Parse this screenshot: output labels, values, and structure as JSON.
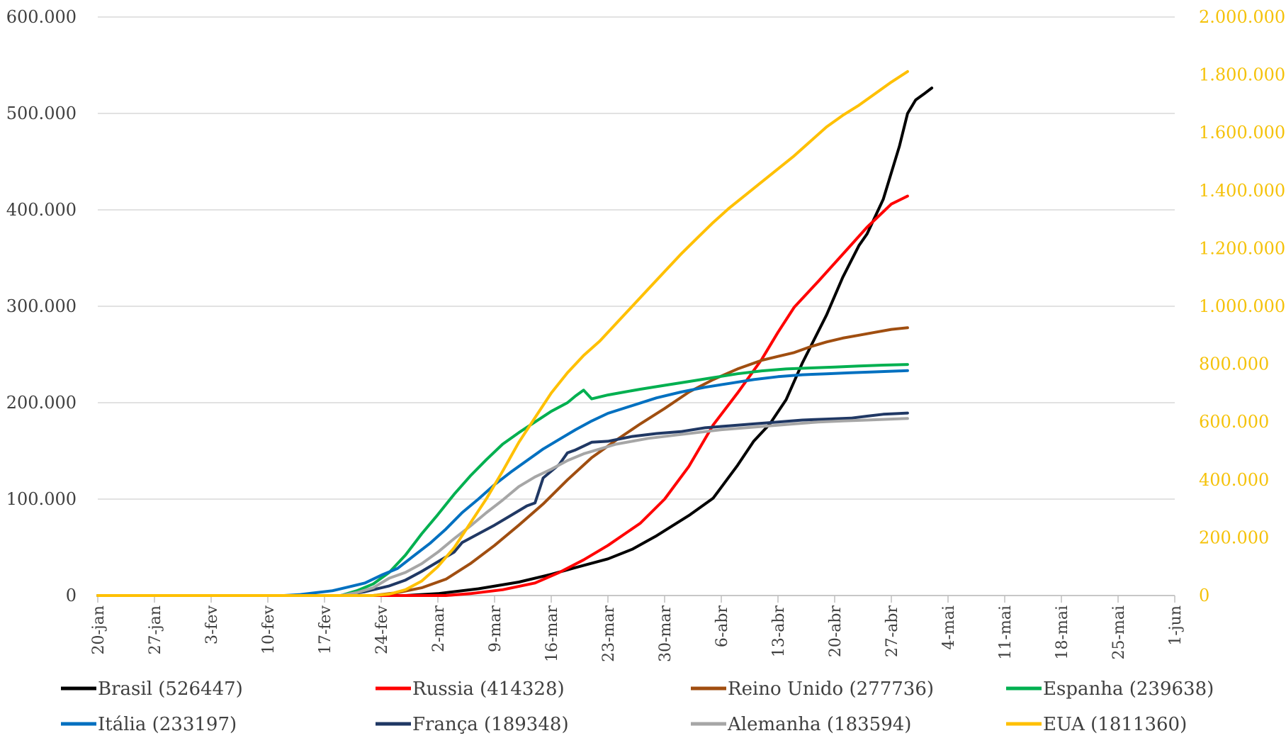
{
  "chart_data": {
    "type": "line",
    "title": "",
    "x_categories": [
      "20-jan",
      "27-jan",
      "3-fev",
      "10-fev",
      "17-fev",
      "24-fev",
      "2-mar",
      "9-mar",
      "16-mar",
      "23-mar",
      "30-mar",
      "6-abr",
      "13-abr",
      "20-abr",
      "27-abr",
      "4-mai",
      "11-mai",
      "18-mai",
      "25-mai",
      "1-jun"
    ],
    "y_left": {
      "ylim": [
        0,
        600000
      ],
      "ticks": [
        0,
        100000,
        200000,
        300000,
        400000,
        500000,
        600000
      ],
      "tick_labels": [
        "0",
        "100.000",
        "200.000",
        "300.000",
        "400.000",
        "500.000",
        "600.000"
      ]
    },
    "y_right": {
      "ylim": [
        0,
        2000000
      ],
      "ticks": [
        0,
        200000,
        400000,
        600000,
        800000,
        1000000,
        1200000,
        1400000,
        1600000,
        1800000,
        2000000
      ],
      "tick_labels": [
        "0",
        "200.000",
        "400.000",
        "600.000",
        "800.000",
        "1.000.000",
        "1.200.000",
        "1.400.000",
        "1.600.000",
        "1.800.000",
        "2.000.000"
      ],
      "color": "#f5c20a"
    },
    "grid": true,
    "legend": "bottom",
    "series": [
      {
        "name": "Brasil (526447)",
        "color": "#000000",
        "axis": "left",
        "points": [
          [
            0,
            0
          ],
          [
            38,
            0
          ],
          [
            42,
            2
          ],
          [
            47,
            7
          ],
          [
            52,
            14
          ],
          [
            56,
            22
          ],
          [
            59,
            29
          ],
          [
            63,
            38
          ],
          [
            66,
            48
          ],
          [
            69,
            62
          ],
          [
            73,
            83
          ],
          [
            76,
            101
          ],
          [
            79,
            135
          ],
          [
            81,
            160
          ],
          [
            83,
            178
          ],
          [
            85,
            203
          ],
          [
            87,
            241
          ],
          [
            90,
            291
          ],
          [
            92,
            330
          ],
          [
            94,
            363
          ],
          [
            95,
            375
          ],
          [
            97,
            411
          ],
          [
            99,
            466
          ],
          [
            100,
            500
          ],
          [
            101,
            514
          ],
          [
            102,
            520
          ],
          [
            103,
            526.4
          ]
        ]
      },
      {
        "name": "Russia (414328)",
        "color": "#ff0000",
        "axis": "left",
        "points": [
          [
            0,
            0
          ],
          [
            43,
            0
          ],
          [
            46,
            2
          ],
          [
            50,
            6
          ],
          [
            54,
            13
          ],
          [
            57,
            24
          ],
          [
            60,
            37
          ],
          [
            63,
            52
          ],
          [
            67,
            75
          ],
          [
            70,
            100
          ],
          [
            73,
            134
          ],
          [
            76,
            177
          ],
          [
            79,
            210
          ],
          [
            82,
            245
          ],
          [
            84,
            273
          ],
          [
            86,
            299
          ],
          [
            89,
            326
          ],
          [
            92,
            354
          ],
          [
            95,
            382
          ],
          [
            98,
            406
          ],
          [
            100,
            414.3
          ]
        ]
      },
      {
        "name": "Reino Unido (277736)",
        "color": "#a04e10",
        "axis": "left",
        "points": [
          [
            0,
            0
          ],
          [
            34,
            0
          ],
          [
            37,
            3
          ],
          [
            40,
            8
          ],
          [
            43,
            17
          ],
          [
            46,
            33
          ],
          [
            49,
            52
          ],
          [
            52,
            73
          ],
          [
            55,
            95
          ],
          [
            58,
            120
          ],
          [
            61,
            143
          ],
          [
            64,
            161
          ],
          [
            67,
            178
          ],
          [
            70,
            194
          ],
          [
            73,
            211
          ],
          [
            76,
            224
          ],
          [
            79,
            235
          ],
          [
            82,
            244
          ],
          [
            84,
            248
          ],
          [
            86,
            252
          ],
          [
            88,
            258
          ],
          [
            90,
            263
          ],
          [
            92,
            267
          ],
          [
            94,
            270
          ],
          [
            96,
            273
          ],
          [
            98,
            276
          ],
          [
            100,
            277.7
          ]
        ]
      },
      {
        "name": "Espanha (239638)",
        "color": "#00b050",
        "axis": "left",
        "points": [
          [
            0,
            0
          ],
          [
            30,
            0
          ],
          [
            32,
            5
          ],
          [
            34,
            12
          ],
          [
            36,
            24
          ],
          [
            38,
            42
          ],
          [
            40,
            64
          ],
          [
            42,
            84
          ],
          [
            44,
            105
          ],
          [
            46,
            124
          ],
          [
            48,
            141
          ],
          [
            50,
            157
          ],
          [
            52,
            169
          ],
          [
            54,
            180
          ],
          [
            56,
            191
          ],
          [
            58,
            200
          ],
          [
            59,
            207
          ],
          [
            60,
            213
          ],
          [
            61,
            204
          ],
          [
            63,
            208
          ],
          [
            65,
            211
          ],
          [
            67,
            214
          ],
          [
            70,
            218
          ],
          [
            73,
            222
          ],
          [
            76,
            226
          ],
          [
            79,
            230
          ],
          [
            82,
            233
          ],
          [
            85,
            235
          ],
          [
            88,
            236
          ],
          [
            91,
            237
          ],
          [
            94,
            238
          ],
          [
            97,
            239
          ],
          [
            100,
            239.6
          ]
        ]
      },
      {
        "name": "Itália (233197)",
        "color": "#0070c0",
        "axis": "left",
        "points": [
          [
            0,
            0
          ],
          [
            23,
            0
          ],
          [
            25,
            1
          ],
          [
            27,
            3
          ],
          [
            29,
            5
          ],
          [
            31,
            9
          ],
          [
            33,
            13
          ],
          [
            35,
            21
          ],
          [
            37,
            28
          ],
          [
            39,
            41
          ],
          [
            41,
            54
          ],
          [
            43,
            69
          ],
          [
            45,
            86
          ],
          [
            47,
            100
          ],
          [
            49,
            115
          ],
          [
            51,
            128
          ],
          [
            53,
            140
          ],
          [
            55,
            152
          ],
          [
            57,
            162
          ],
          [
            59,
            172
          ],
          [
            61,
            181
          ],
          [
            63,
            189
          ],
          [
            66,
            197
          ],
          [
            69,
            205
          ],
          [
            72,
            211
          ],
          [
            75,
            216
          ],
          [
            78,
            220
          ],
          [
            81,
            224
          ],
          [
            84,
            227
          ],
          [
            87,
            229
          ],
          [
            90,
            230
          ],
          [
            93,
            231
          ],
          [
            96,
            232
          ],
          [
            100,
            233.2
          ]
        ]
      },
      {
        "name": "França (189348)",
        "color": "#203864",
        "axis": "left",
        "points": [
          [
            0,
            0
          ],
          [
            30,
            0
          ],
          [
            33,
            4
          ],
          [
            36,
            10
          ],
          [
            38,
            16
          ],
          [
            40,
            25
          ],
          [
            42,
            35
          ],
          [
            44,
            45
          ],
          [
            45,
            55
          ],
          [
            47,
            64
          ],
          [
            49,
            73
          ],
          [
            51,
            83
          ],
          [
            53,
            93
          ],
          [
            54,
            96
          ],
          [
            55,
            122
          ],
          [
            57,
            136
          ],
          [
            58,
            148
          ],
          [
            59,
            151
          ],
          [
            61,
            159
          ],
          [
            63,
            160
          ],
          [
            66,
            165
          ],
          [
            69,
            168
          ],
          [
            72,
            170
          ],
          [
            75,
            174
          ],
          [
            78,
            176
          ],
          [
            81,
            178
          ],
          [
            84,
            180
          ],
          [
            87,
            182
          ],
          [
            90,
            183
          ],
          [
            93,
            184
          ],
          [
            95,
            186
          ],
          [
            97,
            188
          ],
          [
            100,
            189.3
          ]
        ]
      },
      {
        "name": "Alemanha (183594)",
        "color": "#a6a6a6",
        "axis": "left",
        "points": [
          [
            0,
            0
          ],
          [
            30,
            0
          ],
          [
            32,
            3
          ],
          [
            34,
            8
          ],
          [
            36,
            18
          ],
          [
            38,
            24
          ],
          [
            40,
            33
          ],
          [
            42,
            45
          ],
          [
            44,
            59
          ],
          [
            46,
            72
          ],
          [
            48,
            86
          ],
          [
            50,
            99
          ],
          [
            52,
            113
          ],
          [
            54,
            123
          ],
          [
            56,
            131
          ],
          [
            58,
            140
          ],
          [
            60,
            147
          ],
          [
            62,
            152
          ],
          [
            64,
            157
          ],
          [
            66,
            160
          ],
          [
            68,
            163
          ],
          [
            71,
            166
          ],
          [
            74,
            169
          ],
          [
            77,
            172
          ],
          [
            80,
            174
          ],
          [
            83,
            176
          ],
          [
            86,
            178
          ],
          [
            89,
            180
          ],
          [
            92,
            181
          ],
          [
            95,
            182
          ],
          [
            98,
            183
          ],
          [
            100,
            183.6
          ]
        ]
      },
      {
        "name": "EUA (1811360)",
        "color": "#ffc000",
        "axis": "right",
        "points": [
          [
            0,
            0
          ],
          [
            34,
            0
          ],
          [
            36,
            5
          ],
          [
            38,
            20
          ],
          [
            40,
            50
          ],
          [
            42,
            100
          ],
          [
            44,
            165
          ],
          [
            46,
            250
          ],
          [
            48,
            335
          ],
          [
            50,
            430
          ],
          [
            52,
            530
          ],
          [
            54,
            615
          ],
          [
            56,
            700
          ],
          [
            58,
            770
          ],
          [
            60,
            830
          ],
          [
            62,
            880
          ],
          [
            64,
            940
          ],
          [
            66,
            1000
          ],
          [
            68,
            1060
          ],
          [
            70,
            1120
          ],
          [
            72,
            1180
          ],
          [
            74,
            1235
          ],
          [
            76,
            1290
          ],
          [
            78,
            1340
          ],
          [
            80,
            1385
          ],
          [
            82,
            1430
          ],
          [
            84,
            1475
          ],
          [
            86,
            1520
          ],
          [
            88,
            1570
          ],
          [
            90,
            1620
          ],
          [
            92,
            1660
          ],
          [
            94,
            1695
          ],
          [
            96,
            1735
          ],
          [
            98,
            1775
          ],
          [
            100,
            1811.4
          ]
        ]
      }
    ]
  }
}
